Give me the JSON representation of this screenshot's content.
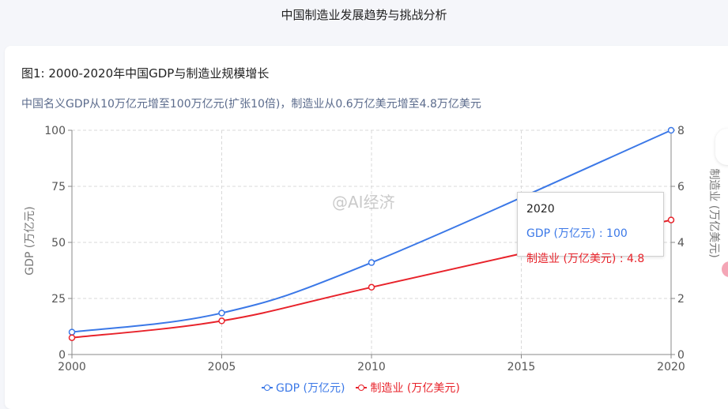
{
  "page": {
    "title": "中国制造业发展趋势与挑战分析"
  },
  "figure": {
    "title": "图1: 2000-2020年中国GDP与制造业规模增长",
    "subtitle": "中国名义GDP从10万亿元增至100万亿元(扩张10倍)，制造业从0.6万亿美元增至4.8万亿美元"
  },
  "colors": {
    "gdp": "#3b78e7",
    "mfg": "#e8232b",
    "grid": "#d9d9d9",
    "axis": "#888888"
  },
  "tooltip": {
    "title": "2020",
    "gdp_text": "GDP (万亿元) : 100",
    "mfg_text": "制造业 (万亿美元) : 4.8"
  },
  "watermark": "@AI经济",
  "chart_data": {
    "type": "line",
    "x": [
      2000,
      2005,
      2010,
      2020
    ],
    "xlim": [
      2000,
      2020
    ],
    "xticks": [
      2000,
      2005,
      2010,
      2015,
      2020
    ],
    "ylabel": "GDP (万亿元)",
    "ylim": [
      0,
      100
    ],
    "yticks": [
      0,
      25,
      50,
      75,
      100
    ],
    "y2label": "制造业 (万亿美元)",
    "y2lim": [
      0,
      8
    ],
    "y2ticks": [
      0,
      2,
      4,
      6,
      8
    ],
    "grid": true,
    "legend": "bottom",
    "series": [
      {
        "name": "GDP (万亿元)",
        "axis": "left",
        "values": [
          10,
          18.5,
          41,
          100
        ]
      },
      {
        "name": "制造业 (万亿美元)",
        "axis": "right",
        "values": [
          0.6,
          1.2,
          2.4,
          4.8
        ]
      }
    ]
  }
}
